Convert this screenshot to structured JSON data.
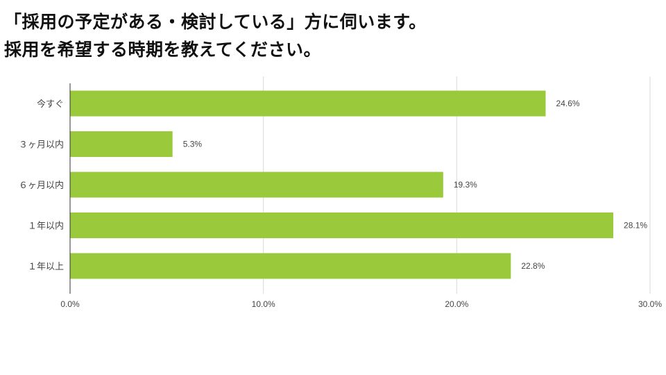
{
  "chart_data": {
    "type": "bar",
    "orientation": "horizontal",
    "title_lines": [
      "「採用の予定がある・検討している」方に伺います。",
      "採用を希望する時期を教えてください。"
    ],
    "categories": [
      "今すぐ",
      "3ヶ月以内",
      "6ヶ月以内",
      "1年以内",
      "1年以上"
    ],
    "category_labels": [
      "今すぐ",
      "３ヶ月以内",
      "６ヶ月以内",
      "１年以内",
      "１年以上"
    ],
    "values": [
      24.6,
      5.3,
      19.3,
      28.1,
      22.8
    ],
    "value_labels": [
      "24.6%",
      "5.3%",
      "19.3%",
      "28.1%",
      "22.8%"
    ],
    "xlim": [
      0,
      30
    ],
    "xticks": [
      0,
      10,
      20,
      30
    ],
    "xtick_labels": [
      "0.0%",
      "10.0%",
      "20.0%",
      "30.0%"
    ],
    "xlabel": "",
    "ylabel": "",
    "grid": true,
    "legend": "none",
    "bar_color": "#9aca3c"
  }
}
